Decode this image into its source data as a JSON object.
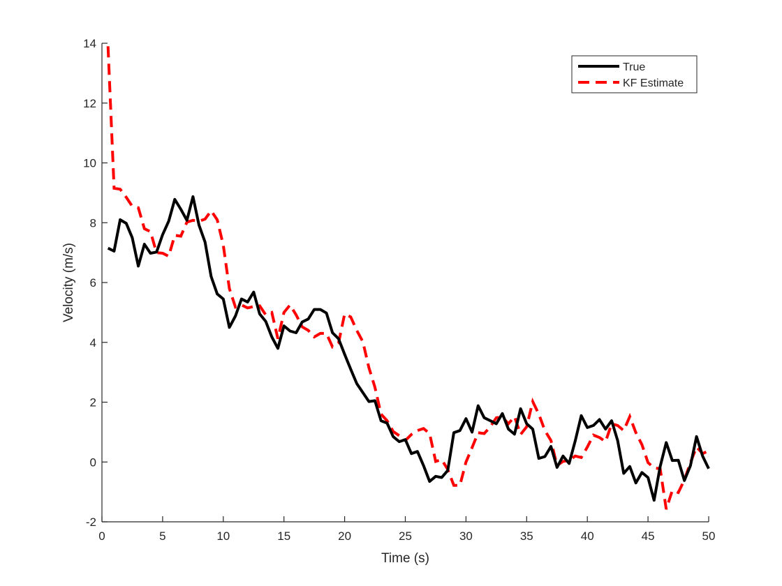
{
  "chart_data": {
    "type": "line",
    "title": "",
    "xlabel": "Time (s)",
    "ylabel": "Velocity (m/s)",
    "xlim": [
      0,
      50
    ],
    "ylim": [
      -2,
      14
    ],
    "xticks": [
      0,
      5,
      10,
      15,
      20,
      25,
      30,
      35,
      40,
      45,
      50
    ],
    "yticks": [
      -2,
      0,
      2,
      4,
      6,
      8,
      10,
      12,
      14
    ],
    "grid": false,
    "legend_position": "top-right",
    "series": [
      {
        "name": "True",
        "color": "#000000",
        "style": "solid",
        "x": [
          0.5,
          1.0,
          1.5,
          2.0,
          2.5,
          3.0,
          3.5,
          4.0,
          4.5,
          5.0,
          5.5,
          6.0,
          6.5,
          7.0,
          7.5,
          8.0,
          8.5,
          9.0,
          9.5,
          10.0,
          10.5,
          11.0,
          11.5,
          12.0,
          12.5,
          13.0,
          13.5,
          14.0,
          14.5,
          15.0,
          15.5,
          16.0,
          16.5,
          17.0,
          17.5,
          18.0,
          18.5,
          19.0,
          19.5,
          20.0,
          20.5,
          21.0,
          21.5,
          22.0,
          22.5,
          23.0,
          23.5,
          24.0,
          24.5,
          25.0,
          25.5,
          26.0,
          26.5,
          27.0,
          27.5,
          28.0,
          28.5,
          29.0,
          29.5,
          30.0,
          30.5,
          31.0,
          31.5,
          32.0,
          32.5,
          33.0,
          33.5,
          34.0,
          34.5,
          35.0,
          35.5,
          36.0,
          36.5,
          37.0,
          37.5,
          38.0,
          38.5,
          39.0,
          39.5,
          40.0,
          40.5,
          41.0,
          41.5,
          42.0,
          42.5,
          43.0,
          43.5,
          44.0,
          44.5,
          45.0,
          45.5,
          46.0,
          46.5,
          47.0,
          47.5,
          48.0,
          48.5,
          49.0,
          49.5,
          50.0
        ],
        "y": [
          7.15,
          7.05,
          8.1,
          7.98,
          7.5,
          6.55,
          7.28,
          6.98,
          7.02,
          7.6,
          8.05,
          8.78,
          8.45,
          8.08,
          8.87,
          7.92,
          7.35,
          6.2,
          5.62,
          5.45,
          4.5,
          4.88,
          5.45,
          5.35,
          5.68,
          4.95,
          4.7,
          4.18,
          3.8,
          4.55,
          4.38,
          4.32,
          4.68,
          4.78,
          5.1,
          5.1,
          4.98,
          4.32,
          4.12,
          3.6,
          3.1,
          2.62,
          2.32,
          2.02,
          2.05,
          1.38,
          1.3,
          0.85,
          0.68,
          0.75,
          0.28,
          0.35,
          -0.12,
          -0.65,
          -0.48,
          -0.52,
          -0.28,
          0.98,
          1.05,
          1.45,
          1.0,
          1.88,
          1.48,
          1.38,
          1.28,
          1.62,
          1.1,
          0.93,
          1.78,
          1.28,
          1.1,
          0.12,
          0.18,
          0.52,
          -0.18,
          0.2,
          -0.05,
          0.7,
          1.55,
          1.15,
          1.22,
          1.42,
          1.1,
          1.38,
          0.72,
          -0.38,
          -0.15,
          -0.7,
          -0.35,
          -0.52,
          -1.28,
          -0.15,
          0.65,
          0.05,
          0.06,
          -0.62,
          -0.12,
          0.85,
          0.2,
          -0.22
        ]
      },
      {
        "name": "KF Estimate",
        "color": "#ff0000",
        "style": "dashed",
        "x": [
          0.5,
          1.0,
          1.5,
          2.0,
          2.5,
          3.0,
          3.5,
          4.0,
          4.5,
          5.0,
          5.5,
          6.0,
          6.5,
          7.0,
          7.5,
          8.0,
          8.5,
          9.0,
          9.5,
          10.0,
          10.5,
          11.0,
          11.5,
          12.0,
          12.5,
          13.0,
          13.5,
          14.0,
          14.5,
          15.0,
          15.5,
          16.0,
          16.5,
          17.0,
          17.5,
          18.0,
          18.5,
          19.0,
          19.5,
          20.0,
          20.5,
          21.0,
          21.5,
          22.0,
          22.5,
          23.0,
          23.5,
          24.0,
          24.5,
          25.0,
          25.5,
          26.0,
          26.5,
          27.0,
          27.5,
          28.0,
          28.5,
          29.0,
          29.5,
          30.0,
          30.5,
          31.0,
          31.5,
          32.0,
          32.5,
          33.0,
          33.5,
          34.0,
          34.5,
          35.0,
          35.5,
          36.0,
          36.5,
          37.0,
          37.5,
          38.0,
          38.5,
          39.0,
          39.5,
          40.0,
          40.5,
          41.0,
          41.5,
          42.0,
          42.5,
          43.0,
          43.5,
          44.0,
          44.5,
          45.0,
          45.5,
          46.0,
          46.5,
          47.0,
          47.5,
          48.0,
          48.5,
          49.0,
          49.5,
          50.0
        ],
        "y": [
          13.9,
          9.15,
          9.12,
          8.85,
          8.55,
          8.5,
          7.8,
          7.7,
          7.0,
          6.98,
          6.88,
          7.58,
          7.55,
          8.02,
          8.08,
          8.05,
          8.12,
          8.4,
          8.1,
          7.25,
          5.8,
          5.18,
          5.25,
          5.15,
          5.2,
          5.22,
          4.92,
          5.0,
          4.12,
          5.0,
          5.25,
          4.92,
          4.52,
          4.4,
          4.18,
          4.3,
          4.3,
          3.85,
          3.98,
          4.95,
          4.85,
          4.4,
          4.02,
          3.15,
          2.5,
          1.6,
          1.38,
          1.02,
          0.88,
          0.72,
          0.92,
          1.05,
          1.12,
          0.95,
          0.02,
          0.08,
          -0.25,
          -0.78,
          -0.78,
          0.0,
          0.48,
          0.98,
          0.95,
          1.18,
          1.48,
          1.5,
          1.28,
          1.52,
          0.92,
          1.18,
          2.02,
          1.6,
          1.05,
          0.72,
          -0.12,
          0.02,
          0.05,
          0.2,
          0.15,
          0.5,
          0.9,
          0.82,
          0.68,
          1.28,
          1.22,
          1.05,
          1.52,
          0.98,
          0.58,
          -0.02,
          -0.2,
          -0.22,
          -1.58,
          -0.95,
          -1.02,
          -0.6,
          -0.02,
          0.5,
          0.28,
          0.38
        ]
      }
    ]
  }
}
